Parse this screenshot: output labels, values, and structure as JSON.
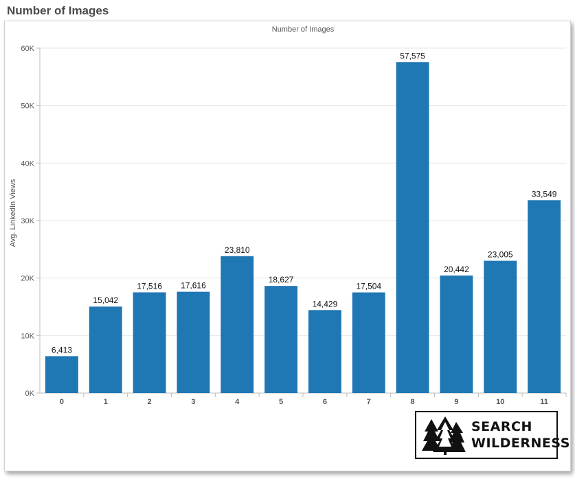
{
  "page_title": "Number of Images",
  "logo": {
    "line1": "SEARCH",
    "line2": "WILDERNESS"
  },
  "colors": {
    "bar": "#1f77b4",
    "grid": "#e6e6e6",
    "axis": "#bbbbbb"
  },
  "chart_data": {
    "type": "bar",
    "title": "Number of Images",
    "xlabel": "",
    "ylabel": "Avg. LinkedIn Views",
    "categories": [
      "0",
      "1",
      "2",
      "3",
      "4",
      "5",
      "6",
      "7",
      "8",
      "9",
      "10",
      "11"
    ],
    "values": [
      6413,
      15042,
      17516,
      17616,
      23810,
      18627,
      14429,
      17504,
      57575,
      20442,
      23005,
      33549
    ],
    "value_labels": [
      "6,413",
      "15,042",
      "17,516",
      "17,616",
      "23,810",
      "18,627",
      "14,429",
      "17,504",
      "57,575",
      "20,442",
      "23,005",
      "33,549"
    ],
    "ylim": [
      0,
      60000
    ],
    "yticks": [
      0,
      10000,
      20000,
      30000,
      40000,
      50000,
      60000
    ],
    "ytick_labels": [
      "0K",
      "10K",
      "20K",
      "30K",
      "40K",
      "50K",
      "60K"
    ],
    "grid": true,
    "legend": "none"
  }
}
